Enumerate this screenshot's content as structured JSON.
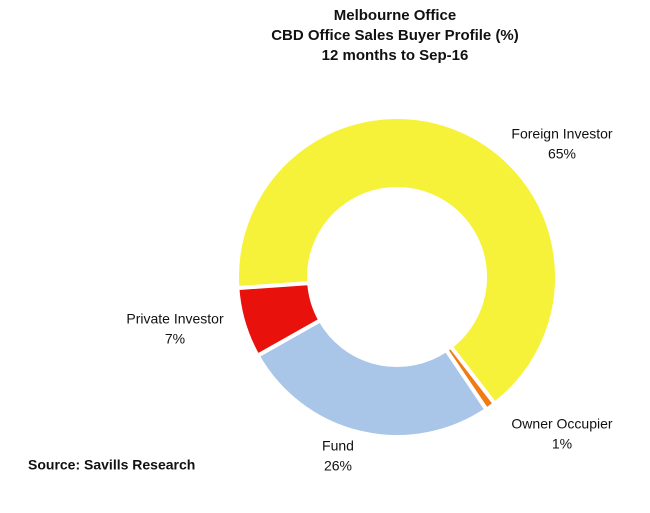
{
  "chart_data": {
    "type": "donut",
    "title": "Melbourne Office",
    "subtitle": "CBD Office Sales Buyer Profile (%)",
    "period": "12 months to Sep-16",
    "categories": [
      "Foreign Investor",
      "Owner Occupier",
      "Fund",
      "Private Investor"
    ],
    "values": [
      65,
      1,
      26,
      7
    ],
    "value_labels": [
      "65%",
      "1%",
      "26%",
      "7%"
    ],
    "colors": [
      "#f6f23a",
      "#f07b12",
      "#a9c5e8",
      "#e8110c"
    ],
    "source": "Source: Savills Research"
  }
}
